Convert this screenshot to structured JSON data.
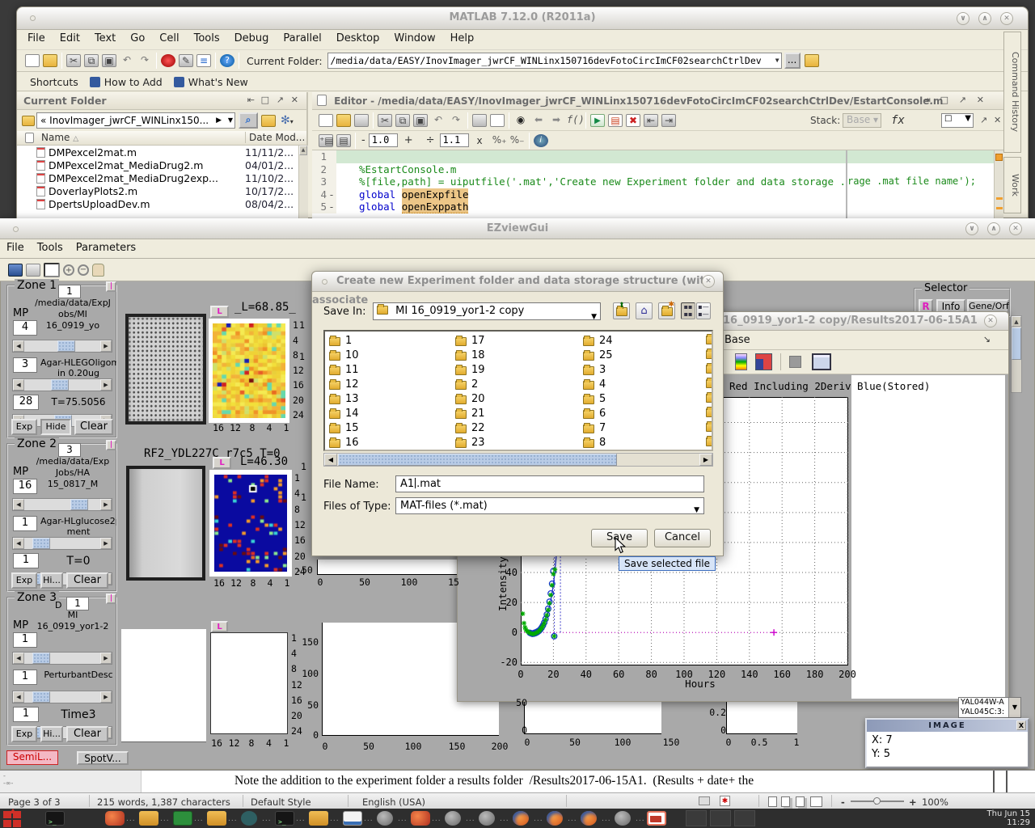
{
  "matlab": {
    "title": "MATLAB  7.12.0 (R2011a)",
    "menus": [
      "File",
      "Edit",
      "Text",
      "Go",
      "Cell",
      "Tools",
      "Debug",
      "Parallel",
      "Desktop",
      "Window",
      "Help"
    ],
    "toolbar": {
      "current_folder_label": "Current Folder:",
      "path": "/media/data/EASY/InovImager_jwrCF_WINLinx150716devFotoCircImCF02searchCtrlDev",
      "dots": "..."
    },
    "shortcuts": {
      "label": "Shortcuts",
      "how_to_add": "How to Add",
      "whats_new": "What's New"
    },
    "folder_panel": {
      "title": "Current Folder",
      "address": "« InovImager_jwrCF_WINLinx150...",
      "col_name": "Name",
      "col_sort": "△",
      "col_date": "Date Mod...",
      "files": [
        {
          "name": "DMPexcel2mat.m",
          "date": "11/11/2..."
        },
        {
          "name": "DMPexcel2mat_MediaDrug2.m",
          "date": "04/01/2..."
        },
        {
          "name": "DMPexcel2mat_MediaDrug2exp...",
          "date": "11/10/2..."
        },
        {
          "name": "DoverlayPlots2.m",
          "date": "10/17/2..."
        },
        {
          "name": "DpertsUploadDev.m",
          "date": "08/04/2..."
        }
      ]
    },
    "editor": {
      "title": "Editor - /media/data/EASY/InovImager_jwrCF_WINLinx150716devFotoCircImCF02searchCtrlDev/EstartConsole.m",
      "stack_label": "Stack:",
      "stack_value": "Base",
      "minus": "-",
      "val1": "1.0",
      "plus": "+",
      "div": "÷",
      "val2": "1.1",
      "mult": "x",
      "lines": [
        {
          "num": "1",
          "exec": "",
          "segs": []
        },
        {
          "num": "2",
          "exec": "",
          "segs": [
            {
              "t": "%EstartConsole.m",
              "c": "c"
            }
          ]
        },
        {
          "num": "3",
          "exec": "",
          "segs": [
            {
              "t": "%[file,path] = uiputfile('.mat','Create new Experiment folder and data storage .mat file name');",
              "c": "c"
            }
          ]
        },
        {
          "num": "4",
          "exec": "-",
          "segs": [
            {
              "t": "global ",
              "c": "k"
            },
            {
              "t": "openExpfile",
              "c": "v"
            }
          ]
        },
        {
          "num": "5",
          "exec": "-",
          "segs": [
            {
              "t": "global ",
              "c": "k"
            },
            {
              "t": "openExppath",
              "c": "v"
            }
          ]
        }
      ],
      "right_line3": "rage .mat file name');"
    },
    "side_tabs": [
      "Command History",
      "Work"
    ]
  },
  "ezview": {
    "title": "EZviewGui",
    "menus": [
      "File",
      "Tools",
      "Parameters"
    ],
    "zones": [
      {
        "name": "Zone 1",
        "zfield": "1",
        "sub": "",
        "mp": "MP",
        "f1": "4",
        "path": [
          "/media/data/ExpJ",
          "obs/MI",
          "16_0919_yo"
        ],
        "f2": "3",
        "media": [
          "Agar-HLEGOligomyc",
          "in 0.20ug"
        ],
        "f3": "28",
        "tlabel": "T=75.5056",
        "buttons": [
          "Exp",
          "Hide",
          "Clear"
        ],
        "thumbs": [
          0.55,
          0.45,
          0.5
        ]
      },
      {
        "name": "Zone 2",
        "zfield": "3",
        "sub": "",
        "mp": "MP",
        "f1": "16",
        "path": [
          "/media/data/Exp",
          "Jobs/HA",
          "15_0817_M"
        ],
        "f2": "1",
        "media": [
          "Agar-HLglucose2pe",
          "ment"
        ],
        "f3": "1",
        "tlabel": "T=0",
        "buttons": [
          "Exp",
          "Hi...",
          "Clear"
        ],
        "thumbs": [
          0.78,
          0.12,
          0.12
        ]
      },
      {
        "name": "Zone 3",
        "zfield": "1",
        "sub": "D",
        "mp": "MP",
        "f1": "1",
        "path": [
          "MI",
          "16_0919_yor1-2"
        ],
        "f2": "1",
        "media": [
          "PerturbantDesc"
        ],
        "f3": "1",
        "tlabel": "Time3",
        "buttons": [
          "Exp",
          "Hi...",
          "Clear"
        ],
        "thumbs": [
          0.12,
          0.12,
          0.12
        ]
      }
    ],
    "semil": "SemiL...",
    "spotv": "SpotV...",
    "row1": {
      "l": "L",
      "title": "_L=68.85_",
      "yticks": [
        "1",
        "4",
        "8",
        "12",
        "16",
        "20",
        "24"
      ],
      "xticks": [
        "16",
        "12",
        "8",
        "4",
        "1"
      ]
    },
    "row2": {
      "title": "RF2_YDL227C_r7c5 T=0",
      "l": "L",
      "subtitle": "L=46.30",
      "yticks": [
        "1",
        "4",
        "8",
        "12",
        "16",
        "20",
        "24"
      ],
      "xticks": [
        "16",
        "12",
        "8",
        "4",
        "1"
      ]
    },
    "row3": {
      "l": "L",
      "yticks": [
        "1",
        "4",
        "8",
        "12",
        "16",
        "20",
        "24"
      ],
      "xticks": [
        "16",
        "12",
        "8",
        "4",
        "1"
      ]
    },
    "stray_ticks": [
      "1",
      "1",
      "1",
      "1"
    ],
    "bottom_plot": {
      "yticks": [
        "150",
        "100",
        "50",
        "0"
      ],
      "xticks": [
        "0",
        "50",
        "100",
        "150",
        "200"
      ]
    },
    "mid_plot": {
      "ytick": "-50",
      "xticks": [
        "0",
        "50",
        "100",
        "15"
      ]
    },
    "plot_a": {
      "yticks": [
        "50",
        "0"
      ],
      "xticks": [
        "0",
        "50",
        "100",
        "150"
      ]
    },
    "plot_b": {
      "yticks": [
        "0.2",
        "0"
      ],
      "xticks": [
        "0",
        "0.5",
        "1"
      ]
    },
    "selector": {
      "title": "Selector",
      "r": "R",
      "info": "Info",
      "gene": "Gene/Orf"
    },
    "gene_list": [
      "YAL044W-A",
      "YAL045C:3:"
    ],
    "image_win": {
      "title": "IMAGE",
      "x": "X: 7",
      "y": "Y: 5",
      "close": "X"
    }
  },
  "results": {
    "title": "16_0919_yor1-2 copy/Results2017-06-15A1",
    "base": "Base",
    "plot": {
      "title": "Red Including 2Deriv Blue(Stored)",
      "ylabel": "Intensity",
      "xlabel": "Hours",
      "xticks": [
        0,
        20,
        40,
        60,
        80,
        100,
        120,
        140,
        160,
        180,
        200
      ],
      "yticks": [
        -20,
        0,
        20,
        40
      ],
      "xlim": [
        0,
        200
      ],
      "ylim": [
        -22,
        157
      ],
      "green_points": [
        [
          1.2,
          12.5
        ],
        [
          2,
          6.2
        ],
        [
          2.6,
          3.4
        ],
        [
          3.2,
          1.8
        ],
        [
          4,
          0.8
        ],
        [
          4.8,
          0.2
        ],
        [
          5.6,
          -0.3
        ],
        [
          6.4,
          -0.8
        ],
        [
          7.2,
          -1
        ],
        [
          8,
          -0.9
        ],
        [
          8.8,
          -0.6
        ],
        [
          9.6,
          -0.2
        ],
        [
          10.4,
          0.3
        ],
        [
          11.2,
          1
        ],
        [
          12,
          1.9
        ],
        [
          12.8,
          3
        ],
        [
          13.6,
          4.4
        ],
        [
          14.4,
          6.2
        ],
        [
          15.2,
          8.5
        ],
        [
          16,
          11.5
        ],
        [
          16.8,
          15
        ],
        [
          17.6,
          19.5
        ],
        [
          18.4,
          25
        ],
        [
          19.2,
          31.5
        ],
        [
          20,
          39
        ],
        [
          20.9,
          42
        ],
        [
          20.5,
          -2.5
        ]
      ],
      "blue_points": [
        [
          5.6,
          -0.2
        ],
        [
          6.4,
          -0.6
        ],
        [
          7.2,
          -0.9
        ],
        [
          8,
          -0.8
        ],
        [
          8.8,
          -0.5
        ],
        [
          9.6,
          -0.1
        ],
        [
          10.4,
          0.4
        ],
        [
          11.2,
          1.1
        ],
        [
          12,
          2
        ],
        [
          12.8,
          3.2
        ],
        [
          13.6,
          4.7
        ],
        [
          14.4,
          6.6
        ],
        [
          15.2,
          9
        ],
        [
          16,
          12
        ],
        [
          16.8,
          15.8
        ],
        [
          17.6,
          20.5
        ],
        [
          18.4,
          26
        ],
        [
          19.2,
          32.5
        ],
        [
          20,
          41
        ],
        [
          20.5,
          -2.5
        ]
      ],
      "fit": {
        "a": 0.19,
        "k": 0.257,
        "x_start": 3.2,
        "x_end": 24.5
      },
      "vlines": [
        20.6,
        24.3
      ],
      "magenta_line": {
        "y": 0,
        "x_end": 155
      }
    }
  },
  "dialog": {
    "title": "Create new Experiment folder and data storage structure (with associate",
    "save_in_label": "Save In:",
    "save_in_value": "MI 16_0919_yor1-2 copy",
    "folders": [
      [
        "1",
        "10",
        "11",
        "12",
        "13",
        "14",
        "15",
        "16"
      ],
      [
        "17",
        "18",
        "19",
        "2",
        "20",
        "21",
        "22",
        "23"
      ],
      [
        "24",
        "25",
        "3",
        "4",
        "5",
        "6",
        "7",
        "8"
      ]
    ],
    "file_name_label": "File Name:",
    "file_name_before": "A1",
    "file_name_after": ".mat",
    "type_label": "Files of Type:",
    "type_value": "MAT-files (*.mat)",
    "save": "Save",
    "cancel": "Cancel",
    "tooltip": "Save selected file"
  },
  "document": {
    "note": "Note the addition to the experiment folder a results folder  /Results2017-06-15A1.  (Results + date+ the"
  },
  "status": {
    "page": "Page 3 of 3",
    "words": "215 words, 1,387 characters",
    "style": "Default Style",
    "lang": "English (USA)",
    "zoom": "100%",
    "minus": "-",
    "plus": "+"
  },
  "taskbar": {
    "icons": [
      "distro-logo",
      "terminal",
      "matlab",
      "folder",
      "spreadsheet",
      "folder",
      "media-app",
      "terminal",
      "folder",
      "document",
      "app",
      "matlab",
      "app",
      "app",
      "firefox",
      "firefox",
      "firefox",
      "app",
      "active-window"
    ],
    "clock_line1": "Thu Jun 15",
    "clock_line2": "11:29"
  },
  "colors": {
    "accent_blue": "#b9cce6",
    "heat_navy": "#0a0aa0",
    "magenta": "#cc00cc",
    "green": "#00aa00",
    "fit_blue": "#2233cc"
  }
}
